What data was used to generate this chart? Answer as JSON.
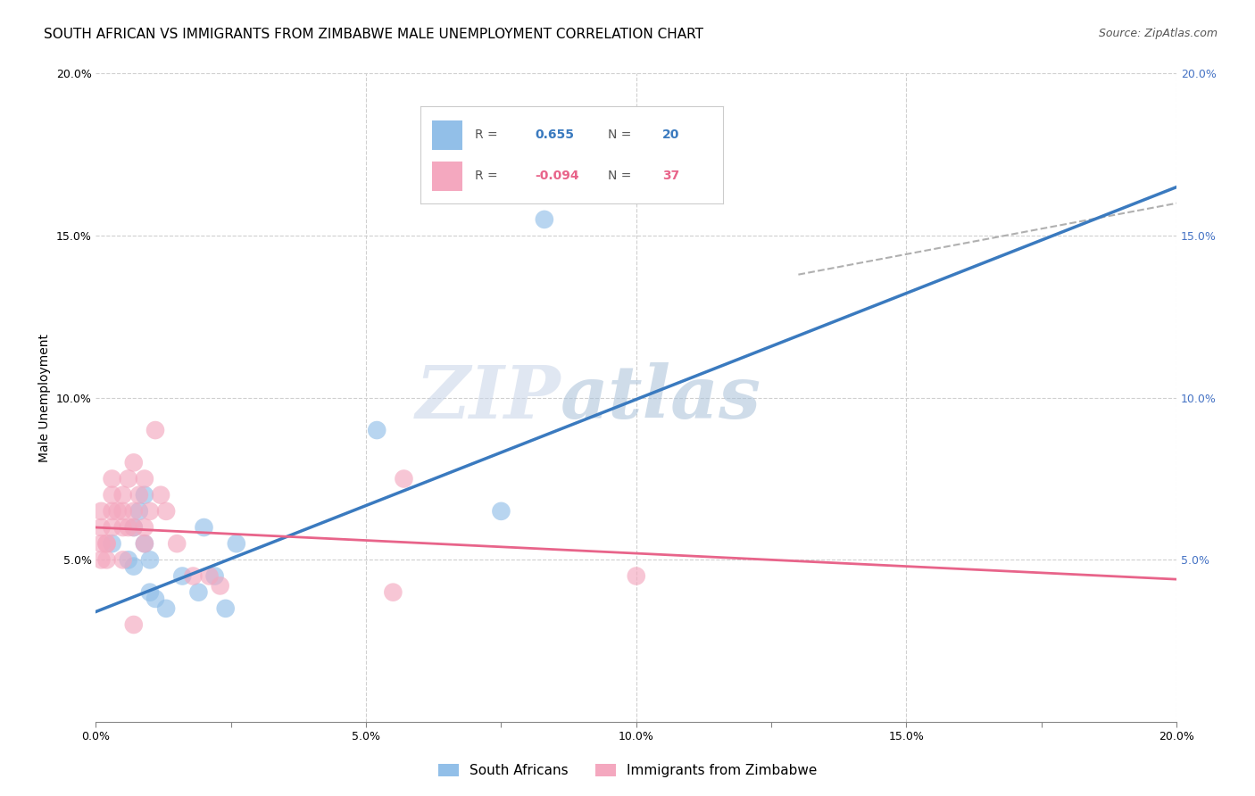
{
  "title": "SOUTH AFRICAN VS IMMIGRANTS FROM ZIMBABWE MALE UNEMPLOYMENT CORRELATION CHART",
  "source": "Source: ZipAtlas.com",
  "ylabel": "Male Unemployment",
  "xlim": [
    0.0,
    0.2
  ],
  "ylim": [
    0.0,
    0.2
  ],
  "xtick_labels": [
    "0.0%",
    "",
    "5.0%",
    "",
    "10.0%",
    "",
    "15.0%",
    "",
    "20.0%"
  ],
  "xtick_vals": [
    0.0,
    0.025,
    0.05,
    0.075,
    0.1,
    0.125,
    0.15,
    0.175,
    0.2
  ],
  "ytick_labels": [
    "5.0%",
    "10.0%",
    "15.0%",
    "20.0%"
  ],
  "ytick_vals": [
    0.05,
    0.1,
    0.15,
    0.2
  ],
  "right_ytick_labels": [
    "5.0%",
    "10.0%",
    "15.0%",
    "20.0%"
  ],
  "right_ytick_vals": [
    0.05,
    0.1,
    0.15,
    0.2
  ],
  "watermark_zip": "ZIP",
  "watermark_atlas": "atlas",
  "blue_color": "#92bfe8",
  "pink_color": "#f4a8bf",
  "blue_line_color": "#3a7abf",
  "pink_line_color": "#e8648a",
  "dashed_line_color": "#b0b0b0",
  "legend_R_blue": "0.655",
  "legend_N_blue": "20",
  "legend_R_pink": "-0.094",
  "legend_N_pink": "37",
  "south_african_x": [
    0.003,
    0.006,
    0.007,
    0.007,
    0.008,
    0.009,
    0.009,
    0.01,
    0.01,
    0.011,
    0.013,
    0.016,
    0.019,
    0.02,
    0.022,
    0.024,
    0.026,
    0.052,
    0.075,
    0.083
  ],
  "south_african_y": [
    0.055,
    0.05,
    0.048,
    0.06,
    0.065,
    0.07,
    0.055,
    0.04,
    0.05,
    0.038,
    0.035,
    0.045,
    0.04,
    0.06,
    0.045,
    0.035,
    0.055,
    0.09,
    0.065,
    0.155
  ],
  "zimbabwe_x": [
    0.001,
    0.001,
    0.001,
    0.001,
    0.002,
    0.002,
    0.002,
    0.003,
    0.003,
    0.003,
    0.003,
    0.004,
    0.005,
    0.005,
    0.005,
    0.005,
    0.006,
    0.006,
    0.007,
    0.007,
    0.007,
    0.008,
    0.009,
    0.009,
    0.009,
    0.01,
    0.011,
    0.012,
    0.013,
    0.015,
    0.018,
    0.021,
    0.023,
    0.055,
    0.007,
    0.057,
    0.1
  ],
  "zimbabwe_y": [
    0.05,
    0.055,
    0.06,
    0.065,
    0.055,
    0.05,
    0.055,
    0.07,
    0.075,
    0.06,
    0.065,
    0.065,
    0.07,
    0.06,
    0.065,
    0.05,
    0.06,
    0.075,
    0.08,
    0.06,
    0.065,
    0.07,
    0.075,
    0.055,
    0.06,
    0.065,
    0.09,
    0.07,
    0.065,
    0.055,
    0.045,
    0.045,
    0.042,
    0.04,
    0.03,
    0.075,
    0.045
  ],
  "blue_trendline_x": [
    0.0,
    0.2
  ],
  "blue_trendline_y": [
    0.034,
    0.165
  ],
  "pink_trendline_x": [
    0.0,
    0.2
  ],
  "pink_trendline_y": [
    0.06,
    0.044
  ],
  "dashed_trendline_x": [
    0.13,
    0.2
  ],
  "dashed_trendline_y": [
    0.138,
    0.16
  ],
  "grid_color": "#d0d0d0",
  "background_color": "#ffffff",
  "title_fontsize": 11,
  "source_fontsize": 9,
  "axis_label_fontsize": 10,
  "tick_fontsize": 9,
  "legend_fontsize": 11,
  "right_tick_color": "#4472c4",
  "legend_text_color": "#333333",
  "legend_R_color_blue": "#3a7abf",
  "legend_N_color_blue": "#3a7abf",
  "legend_R_color_pink": "#e8648a",
  "legend_N_color_pink": "#e8648a"
}
